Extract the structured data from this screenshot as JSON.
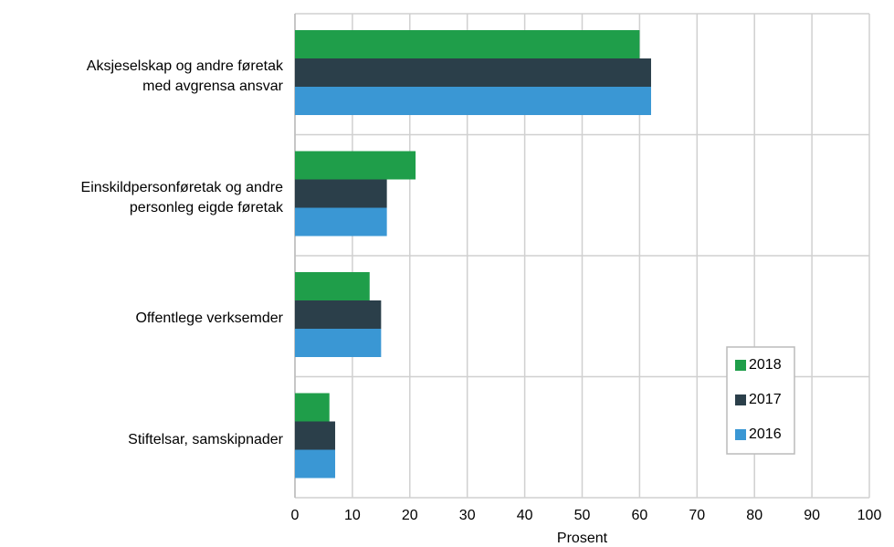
{
  "chart_data": {
    "type": "bar",
    "orientation": "horizontal",
    "categories": [
      "Aksjeselskap og andre føretak\nmed avgrensa ansvar",
      "Einskildpersonføretak og andre\npersonleg eigde føretak",
      "Offentlege verksemder",
      "Stiftelsar, samskipnader"
    ],
    "series": [
      {
        "name": "2018",
        "color": "#1f9e4a",
        "values": [
          60,
          21,
          13,
          6
        ]
      },
      {
        "name": "2017",
        "color": "#2b3f4a",
        "values": [
          62,
          16,
          15,
          7
        ]
      },
      {
        "name": "2016",
        "color": "#3a97d4",
        "values": [
          62,
          16,
          15,
          7
        ]
      }
    ],
    "xlabel": "Prosent",
    "xlim": [
      0,
      100
    ],
    "xticks": [
      0,
      10,
      20,
      30,
      40,
      50,
      60,
      70,
      80,
      90,
      100
    ],
    "grid": true,
    "legend": "lower right"
  }
}
